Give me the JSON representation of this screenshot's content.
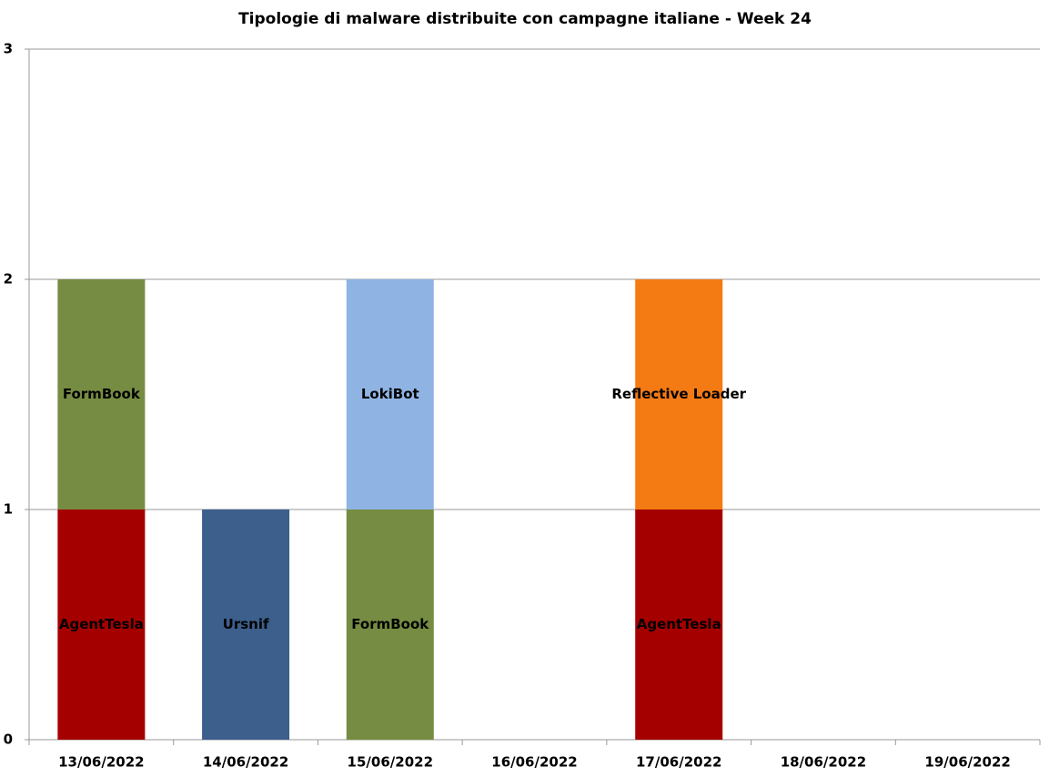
{
  "chart_data": {
    "type": "stacked_bar",
    "title": "Tipologie di malware distribuite con campagne italiane - Week 24",
    "categories": [
      "13/06/2022",
      "14/06/2022",
      "15/06/2022",
      "16/06/2022",
      "17/06/2022",
      "18/06/2022",
      "19/06/2022"
    ],
    "series": [
      {
        "name": "AgentTesla",
        "color": "#a50000",
        "values": [
          1,
          null,
          null,
          null,
          1,
          null,
          null
        ]
      },
      {
        "name": "Ursnif",
        "color": "#3c5f8c",
        "values": [
          null,
          1,
          null,
          null,
          null,
          null,
          null
        ]
      },
      {
        "name": "FormBook",
        "color": "#768c42",
        "values": [
          1,
          null,
          1,
          null,
          null,
          null,
          null
        ]
      },
      {
        "name": "LokiBot",
        "color": "#8fb4e3",
        "values": [
          null,
          null,
          1,
          null,
          null,
          null,
          null
        ]
      },
      {
        "name": "Reflective Loader",
        "color": "#f47a14",
        "values": [
          null,
          null,
          null,
          null,
          1,
          null,
          null
        ]
      }
    ],
    "ylim": [
      0,
      3
    ],
    "yticks": [
      0,
      1,
      2,
      3
    ],
    "grid": true
  }
}
